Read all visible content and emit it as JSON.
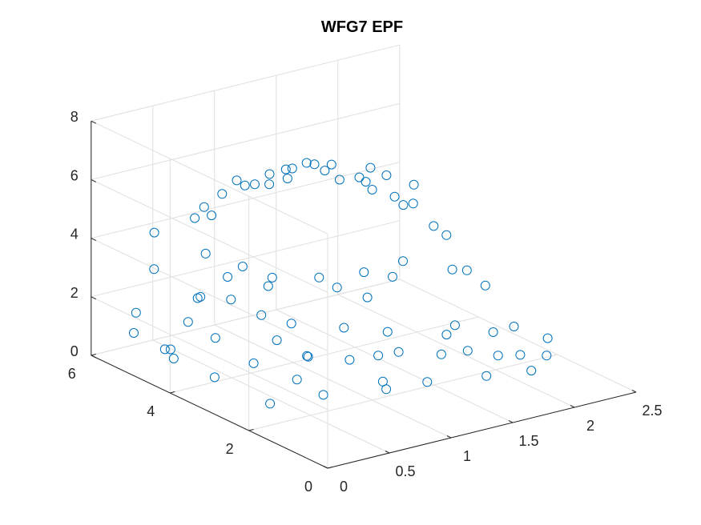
{
  "chart_data": {
    "type": "scatter",
    "title": "WFG7 EPF",
    "xlabel": "",
    "ylabel": "",
    "zlabel": "",
    "xlim": [
      0,
      2.5
    ],
    "ylim": [
      0,
      6
    ],
    "zlim": [
      0,
      8
    ],
    "xticks": [
      0,
      0.5,
      1,
      1.5,
      2,
      2.5
    ],
    "yticks": [
      0,
      2,
      4,
      6
    ],
    "zticks": [
      0,
      2,
      4,
      6,
      8
    ],
    "xtick_labels": [
      "0",
      "0.5",
      "1",
      "1.5",
      "2",
      "2.5"
    ],
    "ytick_labels": [
      "0",
      "2",
      "4",
      "6"
    ],
    "ztick_labels": [
      "0",
      "2",
      "4",
      "6",
      "8"
    ],
    "grid": true,
    "marker": "circle",
    "marker_color": "#0072bd",
    "series": [
      {
        "points": [
          [
            0.01,
            4.95,
            1.43
          ],
          [
            0.18,
            4.55,
            0.95
          ],
          [
            0.11,
            4.25,
            0.9
          ],
          [
            0.4,
            4.55,
            2.47
          ],
          [
            0.06,
            5.05,
            2.0
          ],
          [
            0.35,
            5.5,
            2.9
          ],
          [
            0.85,
            5.2,
            2.31
          ],
          [
            1.02,
            4.7,
            2.14
          ],
          [
            0.4,
            5.65,
            4.0
          ],
          [
            0.8,
            5.6,
            2.9
          ],
          [
            1.02,
            5.35,
            2.39
          ],
          [
            0.82,
            5.7,
            4.4
          ],
          [
            0.95,
            5.65,
            4.75
          ],
          [
            1.15,
            5.45,
            5.0
          ],
          [
            1.1,
            5.75,
            4.99
          ],
          [
            1.4,
            5.4,
            4.97
          ],
          [
            1.35,
            5.7,
            4.98
          ],
          [
            1.45,
            5.6,
            5.1
          ],
          [
            1.65,
            5.5,
            5.13
          ],
          [
            1.55,
            5.75,
            4.93
          ],
          [
            1.75,
            5.55,
            4.78
          ],
          [
            1.95,
            5.3,
            4.5
          ],
          [
            2.05,
            5.45,
            4.15
          ],
          [
            1.95,
            5.8,
            4.1
          ],
          [
            2.15,
            5.6,
            3.68
          ],
          [
            2.3,
            5.5,
            3.35
          ],
          [
            2.45,
            5.5,
            2.96
          ],
          [
            2.45,
            5.75,
            2.75
          ],
          [
            2.6,
            5.45,
            2.07
          ],
          [
            2.72,
            5.5,
            1.6
          ],
          [
            0.75,
            4.8,
            1.9
          ],
          [
            0.9,
            4.5,
            1.4
          ],
          [
            1.4,
            4.6,
            2.1
          ],
          [
            1.45,
            4.3,
            1.9
          ],
          [
            1.7,
            4.4,
            2.1
          ],
          [
            1.9,
            4.3,
            1.8
          ],
          [
            2.0,
            4.35,
            2.2
          ],
          [
            1.6,
            4.0,
            1.6
          ],
          [
            2.4,
            4.35,
            1.5
          ],
          [
            2.55,
            4.45,
            1.25
          ],
          [
            2.62,
            4.2,
            0.82
          ],
          [
            0.4,
            4.1,
            1.4
          ],
          [
            0.25,
            3.65,
            0.5
          ],
          [
            0.95,
            3.5,
            0.6
          ],
          [
            1.2,
            3.2,
            0.4
          ],
          [
            1.7,
            3.8,
            0.45
          ],
          [
            1.4,
            3.1,
            0.4
          ],
          [
            2.05,
            3.4,
            0.25
          ],
          [
            2.3,
            3.0,
            0.33
          ],
          [
            2.55,
            2.4,
            0.25
          ],
          [
            0.3,
            2.4,
            0.35
          ],
          [
            0.7,
            2.3,
            0.3
          ],
          [
            1.15,
            2.2,
            0.35
          ],
          [
            1.95,
            2.55,
            0.35
          ],
          [
            2.2,
            2.0,
            0.3
          ],
          [
            1.05,
            1.8,
            0.45
          ],
          [
            1.35,
            1.7,
            0.45
          ],
          [
            1.75,
            1.45,
            0.4
          ],
          [
            2.05,
            1.25,
            0.4
          ],
          [
            0.55,
            2.5,
            0.85
          ],
          [
            0.8,
            3.0,
            1.05
          ],
          [
            1.25,
            3.5,
            1.25
          ],
          [
            0.68,
            5.5,
            4.3
          ],
          [
            0.8,
            5.45,
            4.3
          ],
          [
            1.15,
            5.7,
            4.8
          ],
          [
            1.3,
            5.55,
            4.78
          ],
          [
            1.65,
            5.7,
            5.05
          ],
          [
            1.82,
            5.6,
            4.88
          ],
          [
            2.25,
            5.55,
            4.1
          ],
          [
            2.2,
            5.8,
            4.25
          ],
          [
            2.52,
            5.7,
            3.4
          ],
          [
            0.45,
            4.95,
            1.35
          ],
          [
            0.15,
            4.6,
            0.95
          ],
          [
            0.55,
            3.6,
            0.7
          ],
          [
            0.85,
            3.95,
            0.95
          ],
          [
            1.0,
            4.05,
            1.3
          ],
          [
            1.55,
            3.05,
            0.4
          ],
          [
            1.8,
            2.75,
            0.25
          ],
          [
            2.1,
            2.25,
            0.22
          ],
          [
            2.35,
            1.8,
            0.25
          ],
          [
            2.15,
            3.5,
            0.4
          ],
          [
            2.5,
            3.1,
            0.25
          ],
          [
            0.55,
            4.95,
            2.1
          ],
          [
            1.1,
            4.85,
            2.25
          ]
        ]
      }
    ]
  }
}
